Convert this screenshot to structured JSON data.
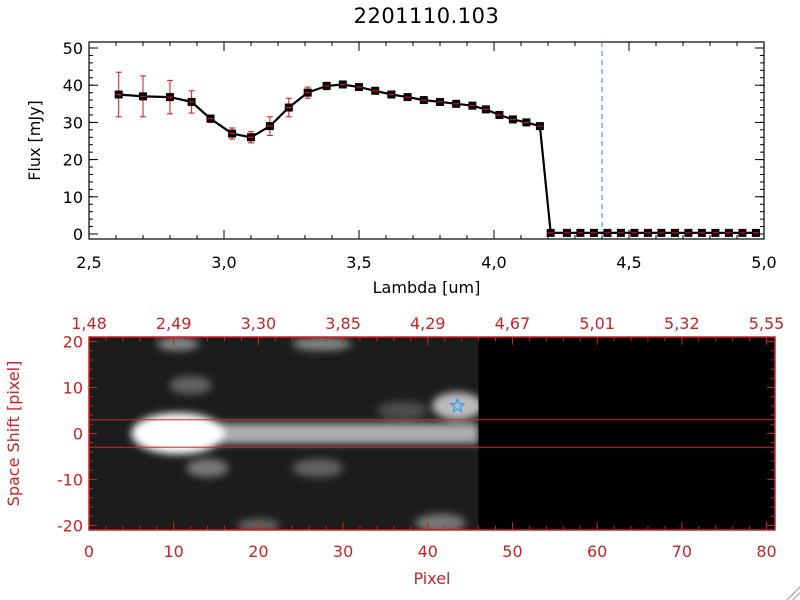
{
  "title": "2201110.103",
  "chart_data": [
    {
      "type": "line",
      "xlabel": "Lambda [um]",
      "ylabel": "Flux [mJy]",
      "xlim": [
        2.5,
        5.0
      ],
      "ylim": [
        0,
        50
      ],
      "xticks": [
        "2.5",
        "3.0",
        "3.5",
        "4.0",
        "4.5",
        "5.0"
      ],
      "yticks": [
        "0",
        "10",
        "20",
        "30",
        "40",
        "50"
      ],
      "marker_line_color": "#dd1111",
      "errorbar_color": "#dd1111",
      "line_color": "#000000",
      "reference_line": {
        "x": 4.4,
        "color": "#2288ee",
        "style": "dashed"
      },
      "grid": false,
      "series": [
        {
          "x": [
            2.61,
            2.7,
            2.8,
            2.88,
            2.95,
            3.03,
            3.1,
            3.17,
            3.24,
            3.31,
            3.38,
            3.44,
            3.5,
            3.56,
            3.62,
            3.68,
            3.74,
            3.8,
            3.86,
            3.92,
            3.97,
            4.02,
            4.07,
            4.12,
            4.17,
            4.21,
            4.27,
            4.32,
            4.37,
            4.42,
            4.47,
            4.52,
            4.57,
            4.62,
            4.67,
            4.72,
            4.77,
            4.82,
            4.87,
            4.92,
            4.97
          ],
          "y": [
            37.5,
            37.0,
            36.8,
            35.5,
            31.0,
            27.0,
            26.0,
            29.0,
            34.0,
            38.0,
            39.8,
            40.2,
            39.5,
            38.5,
            37.5,
            36.8,
            36.0,
            35.5,
            35.0,
            34.5,
            33.5,
            32.0,
            30.8,
            30.0,
            29.0,
            0.3,
            0.3,
            0.3,
            0.3,
            0.3,
            0.3,
            0.3,
            0.3,
            0.3,
            0.3,
            0.3,
            0.3,
            0.3,
            0.3,
            0.3,
            0.3
          ],
          "yerr": [
            6.0,
            5.5,
            4.5,
            3.0,
            1.0,
            1.5,
            1.5,
            2.5,
            2.5,
            1.5,
            1.0,
            0.5,
            0.5,
            0.5,
            0.5,
            0.3,
            0.3,
            0.3,
            0.3,
            0.3,
            0.3,
            0.3,
            0.3,
            0.3,
            0.3,
            0,
            0,
            0,
            0,
            0,
            0,
            0,
            0,
            0,
            0,
            0,
            0,
            0,
            0,
            0,
            0
          ]
        }
      ]
    },
    {
      "type": "heatmap",
      "xlabel": "Pixel",
      "ylabel": "Space Shift [pixel]",
      "xlim": [
        0,
        81
      ],
      "ylim": [
        -21,
        21
      ],
      "xticks": [
        "0",
        "10",
        "20",
        "30",
        "40",
        "50",
        "60",
        "70",
        "80"
      ],
      "yticks": [
        "-20",
        "-10",
        "0",
        "10",
        "20"
      ],
      "top_ticks": [
        "1.48",
        "2.49",
        "3.30",
        "3.85",
        "4.29",
        "4.67",
        "5.01",
        "5.32",
        "5.55"
      ],
      "axis_color": "#cc2222",
      "aperture_lines": [
        3,
        -3
      ],
      "data_extent_x": 46,
      "blobs": [
        {
          "x": 10.5,
          "y": 0,
          "rx": 5.5,
          "ry": 4.5,
          "i": 1.0
        },
        {
          "x": 43.5,
          "y": 6,
          "rx": 3,
          "ry": 3,
          "i": 0.8
        },
        {
          "x": 10.5,
          "y": 19.5,
          "rx": 2.5,
          "ry": 1.5,
          "i": 0.6
        },
        {
          "x": 27.5,
          "y": 19.5,
          "rx": 3.5,
          "ry": 1.5,
          "i": 0.6
        },
        {
          "x": 12,
          "y": 10.5,
          "rx": 2.5,
          "ry": 2,
          "i": 0.45
        },
        {
          "x": 14,
          "y": -7.5,
          "rx": 2.5,
          "ry": 2,
          "i": 0.55
        },
        {
          "x": 27,
          "y": -7.5,
          "rx": 3,
          "ry": 2,
          "i": 0.45
        },
        {
          "x": 20,
          "y": -20,
          "rx": 2.5,
          "ry": 1.5,
          "i": 0.45
        },
        {
          "x": 41.5,
          "y": -19.5,
          "rx": 3,
          "ry": 2,
          "i": 0.55
        },
        {
          "x": 37,
          "y": 5,
          "rx": 3,
          "ry": 2,
          "i": 0.35
        }
      ],
      "trace": {
        "x_start": 10,
        "x_end": 46,
        "halfwidth": 2.2,
        "i": 0.85
      }
    }
  ]
}
